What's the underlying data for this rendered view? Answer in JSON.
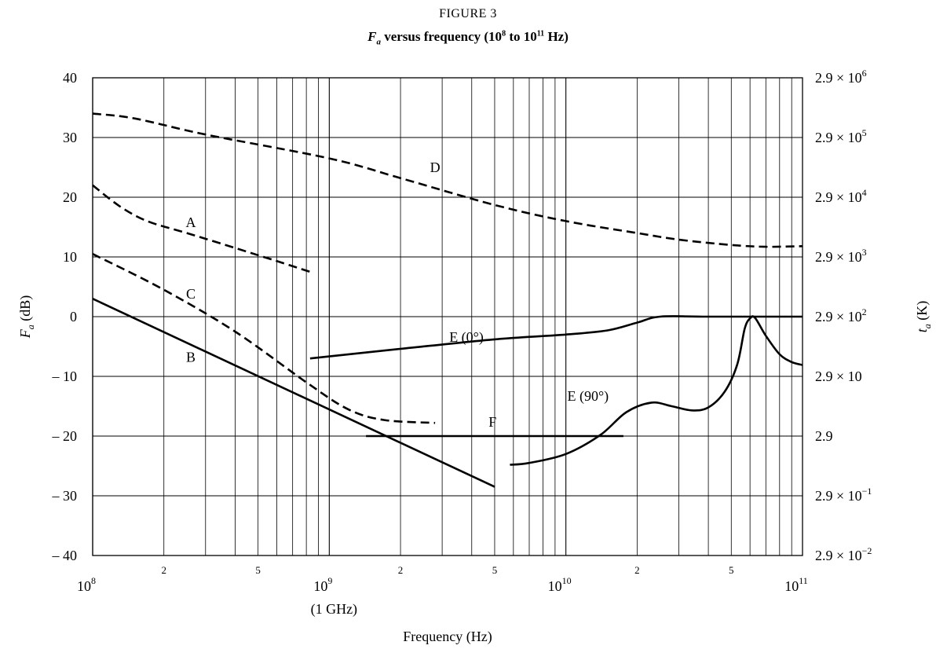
{
  "figure_label": "FIGURE 3",
  "title": {
    "fa": "F",
    "fa_sub": "a",
    "mid": " versus frequency (10",
    "e1": "8",
    "to": " to 10",
    "e2": "11",
    "end": " Hz)"
  },
  "chart_data": {
    "type": "line",
    "x_scale": "log",
    "x_range": [
      100000000.0,
      100000000000.0
    ],
    "y_range": [
      -40,
      40
    ],
    "grid": true,
    "xlabel": "Frequency (Hz)",
    "x_note": "(1 GHz)",
    "ylabel_left": {
      "main": "F",
      "sub": "a",
      "rest": " (dB)"
    },
    "ylabel_right": {
      "main": "t",
      "sub": "a",
      "rest": " (K)"
    },
    "x_major_ticks": [
      {
        "value": 100000000.0,
        "base": "10",
        "exp": "8"
      },
      {
        "value": 1000000000.0,
        "base": "10",
        "exp": "9"
      },
      {
        "value": 10000000000.0,
        "base": "10",
        "exp": "10"
      },
      {
        "value": 100000000000.0,
        "base": "10",
        "exp": "11"
      }
    ],
    "x_minor_labels": [
      {
        "value": 200000000.0,
        "label": "2"
      },
      {
        "value": 500000000.0,
        "label": "5"
      },
      {
        "value": 2000000000.0,
        "label": "2"
      },
      {
        "value": 5000000000.0,
        "label": "5"
      },
      {
        "value": 20000000000.0,
        "label": "2"
      },
      {
        "value": 50000000000.0,
        "label": "5"
      }
    ],
    "y_ticks_left": [
      {
        "value": 40,
        "label": "40"
      },
      {
        "value": 30,
        "label": "30"
      },
      {
        "value": 20,
        "label": "20"
      },
      {
        "value": 10,
        "label": "10"
      },
      {
        "value": 0,
        "label": "0"
      },
      {
        "value": -10,
        "label": "– 10"
      },
      {
        "value": -20,
        "label": "– 20"
      },
      {
        "value": -30,
        "label": "– 30"
      },
      {
        "value": -40,
        "label": "– 40"
      }
    ],
    "y_ticks_right": [
      {
        "value": 40,
        "label": "2.9 × 10",
        "exp": "6"
      },
      {
        "value": 30,
        "label": "2.9 × 10",
        "exp": "5"
      },
      {
        "value": 20,
        "label": "2.9 × 10",
        "exp": "4"
      },
      {
        "value": 10,
        "label": "2.9 × 10",
        "exp": "3"
      },
      {
        "value": 0,
        "label": "2.9 × 10",
        "exp": "2"
      },
      {
        "value": -10,
        "label": "2.9 × 10",
        "exp": ""
      },
      {
        "value": -20,
        "label": "2.9",
        "exp": ""
      },
      {
        "value": -30,
        "label": "2.9 × 10",
        "exp": "−1"
      },
      {
        "value": -40,
        "label": "2.9 × 10",
        "exp": "−2"
      }
    ],
    "series": [
      {
        "name": "A",
        "style": "dashed",
        "points": [
          [
            100000000.0,
            22
          ],
          [
            130000000.0,
            18.5
          ],
          [
            170000000.0,
            16
          ],
          [
            250000000.0,
            14
          ],
          [
            400000000.0,
            11.5
          ],
          [
            600000000.0,
            9.3
          ],
          [
            830000000.0,
            7.5
          ]
        ],
        "label_at": [
          260000000.0,
          15.8
        ]
      },
      {
        "name": "B",
        "style": "solid",
        "points": [
          [
            100000000.0,
            3
          ],
          [
            5000000000.0,
            -28.5
          ]
        ],
        "label_at": [
          260000000.0,
          -6.8
        ]
      },
      {
        "name": "C",
        "style": "dashed",
        "points": [
          [
            100000000.0,
            10.5
          ],
          [
            200000000.0,
            4.5
          ],
          [
            400000000.0,
            -2.5
          ],
          [
            800000000.0,
            -11
          ],
          [
            1200000000.0,
            -15.5
          ],
          [
            1700000000.0,
            -17.3
          ],
          [
            2800000000.0,
            -17.8
          ]
        ],
        "label_at": [
          260000000.0,
          3.8
        ]
      },
      {
        "name": "D",
        "style": "dashed",
        "points": [
          [
            100000000.0,
            34
          ],
          [
            150000000.0,
            33.2
          ],
          [
            300000000.0,
            30.5
          ],
          [
            1000000000.0,
            26.5
          ],
          [
            2000000000.0,
            23.2
          ],
          [
            5000000000.0,
            18.7
          ],
          [
            10000000000.0,
            16
          ],
          [
            20000000000.0,
            14
          ],
          [
            30000000000.0,
            12.9
          ],
          [
            50000000000.0,
            12
          ],
          [
            70000000000.0,
            11.7
          ],
          [
            100000000000.0,
            11.8
          ]
        ],
        "label_at": [
          2800000000.0,
          25
        ]
      },
      {
        "name": "E (0°)",
        "style": "solid",
        "points": [
          [
            830000000.0,
            -7
          ],
          [
            2000000000.0,
            -5.4
          ],
          [
            5000000000.0,
            -3.8
          ],
          [
            10000000000.0,
            -3
          ],
          [
            15000000000.0,
            -2.3
          ],
          [
            20000000000.0,
            -1
          ],
          [
            25000000000.0,
            0
          ],
          [
            40000000000.0,
            0
          ],
          [
            100000000000.0,
            0
          ]
        ],
        "label_at": [
          3800000000.0,
          -3.4
        ]
      },
      {
        "name": "E (90°)",
        "style": "solid",
        "points": [
          [
            5800000000.0,
            -24.8
          ],
          [
            7000000000.0,
            -24.5
          ],
          [
            10000000000.0,
            -23
          ],
          [
            14000000000.0,
            -19.8
          ],
          [
            18000000000.0,
            -16
          ],
          [
            23000000000.0,
            -14.4
          ],
          [
            28000000000.0,
            -15
          ],
          [
            34000000000.0,
            -15.7
          ],
          [
            40000000000.0,
            -15.2
          ],
          [
            47000000000.0,
            -12.5
          ],
          [
            53000000000.0,
            -8
          ],
          [
            57000000000.0,
            -2
          ],
          [
            60000000000.0,
            -0.3
          ],
          [
            63000000000.0,
            -0.2
          ],
          [
            70000000000.0,
            -3.2
          ],
          [
            80000000000.0,
            -6.3
          ],
          [
            90000000000.0,
            -7.6
          ],
          [
            100000000000.0,
            -8.1
          ]
        ],
        "label_at": [
          12400000000.0,
          -13.3
        ]
      },
      {
        "name": "F",
        "style": "solid",
        "points": [
          [
            1430000000.0,
            -20
          ],
          [
            17500000000.0,
            -20
          ]
        ],
        "label_at": [
          4900000000.0,
          -17.6
        ]
      }
    ]
  }
}
